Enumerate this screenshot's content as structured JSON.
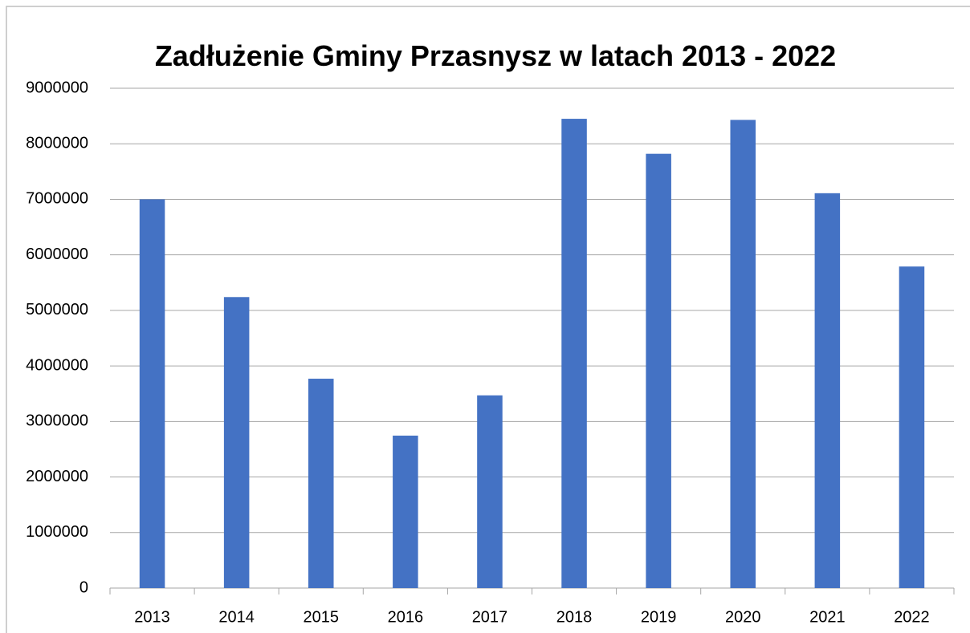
{
  "chart_data": {
    "type": "bar",
    "title": "Zadłużenie Gminy Przasnysz w latach 2013 - 2022",
    "categories": [
      "2013",
      "2014",
      "2015",
      "2016",
      "2017",
      "2018",
      "2019",
      "2020",
      "2021",
      "2022"
    ],
    "values": [
      7000000,
      5240000,
      3770000,
      2745000,
      3470000,
      8450000,
      7820000,
      8430000,
      7110000,
      5790000
    ],
    "color": "#4472c4",
    "ylim": [
      0,
      9000000
    ],
    "yticks": [
      0,
      1000000,
      2000000,
      3000000,
      4000000,
      5000000,
      6000000,
      7000000,
      8000000,
      9000000
    ],
    "grid": true
  }
}
